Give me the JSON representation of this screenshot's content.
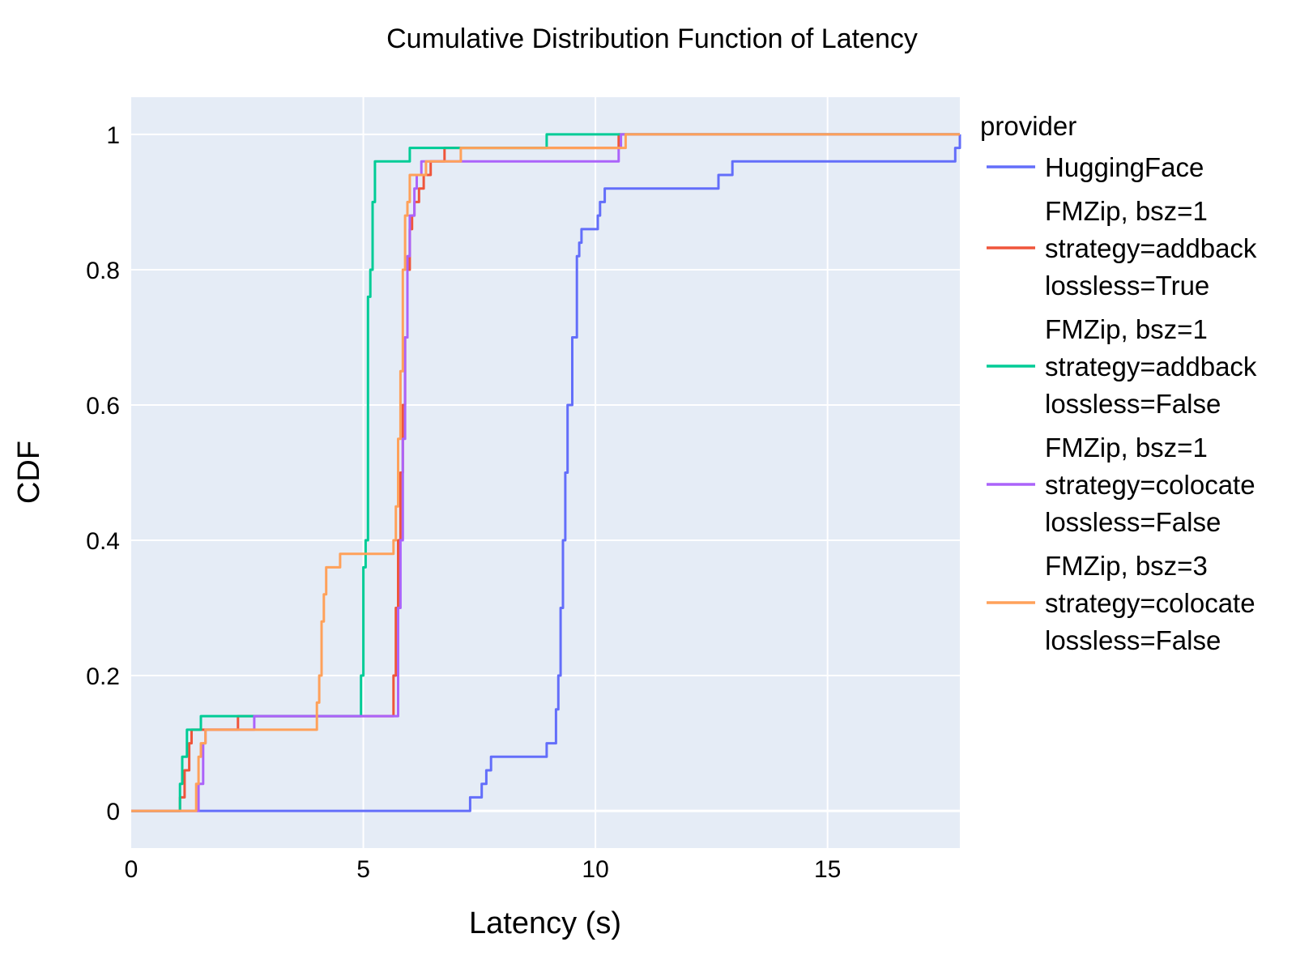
{
  "chart_data": {
    "type": "line",
    "title": "Cumulative Distribution Function of Latency",
    "xlabel": "Latency (s)",
    "ylabel": "CDF",
    "xlim": [
      0,
      17.85
    ],
    "ylim": [
      -0.055,
      1.055
    ],
    "xticks": [
      0,
      5,
      10,
      15
    ],
    "xtick_labels": [
      "0",
      "5",
      "10",
      "15"
    ],
    "yticks": [
      0,
      0.2,
      0.4,
      0.6,
      0.8,
      1
    ],
    "ytick_labels": [
      "0",
      "0.2",
      "0.4",
      "0.6",
      "0.8",
      "1"
    ],
    "grid": true,
    "legend_title": "provider",
    "legend_position": "right",
    "series": [
      {
        "name": "HuggingFace",
        "color": "#636efa",
        "x": [
          0,
          7.25,
          7.3,
          7.55,
          7.65,
          7.75,
          7.8,
          8.95,
          9.0,
          9.15,
          9.2,
          9.25,
          9.3,
          9.35,
          9.4,
          9.5,
          9.6,
          9.65,
          9.7,
          9.75,
          9.8,
          10.05,
          10.1,
          10.2,
          10.25,
          12.65,
          12.75,
          12.95,
          13.0,
          17.75,
          17.85
        ],
        "y": [
          0,
          0,
          0.02,
          0.04,
          0.06,
          0.08,
          0.08,
          0.1,
          0.1,
          0.15,
          0.2,
          0.3,
          0.4,
          0.5,
          0.6,
          0.7,
          0.82,
          0.84,
          0.86,
          0.86,
          0.86,
          0.88,
          0.9,
          0.92,
          0.92,
          0.94,
          0.94,
          0.96,
          0.96,
          0.98,
          1.0
        ]
      },
      {
        "name": "FMZip, bsz=1 strategy=addback lossless=True",
        "color": "#ef553b",
        "x": [
          0,
          1.0,
          1.05,
          1.15,
          1.25,
          1.3,
          2.25,
          2.3,
          5.6,
          5.65,
          5.7,
          5.75,
          5.8,
          5.85,
          5.9,
          5.95,
          6.0,
          6.05,
          6.1,
          6.2,
          6.3,
          6.45,
          6.6,
          6.75,
          10.45,
          10.5,
          17.85
        ],
        "y": [
          0,
          0,
          0.02,
          0.06,
          0.1,
          0.12,
          0.12,
          0.14,
          0.14,
          0.2,
          0.3,
          0.4,
          0.5,
          0.6,
          0.7,
          0.8,
          0.86,
          0.88,
          0.9,
          0.92,
          0.94,
          0.96,
          0.96,
          0.98,
          0.98,
          1.0,
          1.0
        ]
      },
      {
        "name": "FMZip, bsz=1 strategy=addback lossless=False",
        "color": "#00cc96",
        "x": [
          0,
          1.0,
          1.05,
          1.1,
          1.2,
          1.5,
          4.9,
          4.95,
          5.0,
          5.05,
          5.1,
          5.15,
          5.2,
          5.25,
          5.3,
          5.95,
          6.0,
          8.9,
          8.95,
          17.85
        ],
        "y": [
          0,
          0,
          0.04,
          0.08,
          0.12,
          0.14,
          0.14,
          0.2,
          0.36,
          0.4,
          0.76,
          0.8,
          0.9,
          0.96,
          0.96,
          0.96,
          0.98,
          0.98,
          1.0,
          1.0
        ]
      },
      {
        "name": "FMZip, bsz=1 strategy=colocate lossless=False",
        "color": "#ab63fa",
        "x": [
          0,
          1.4,
          1.45,
          1.55,
          1.6,
          2.6,
          2.65,
          5.7,
          5.75,
          5.8,
          5.85,
          5.9,
          5.95,
          6.0,
          6.1,
          6.15,
          6.25,
          6.3,
          10.5,
          10.55,
          17.85
        ],
        "y": [
          0,
          0,
          0.04,
          0.1,
          0.12,
          0.12,
          0.14,
          0.14,
          0.3,
          0.4,
          0.55,
          0.7,
          0.82,
          0.88,
          0.92,
          0.94,
          0.96,
          0.96,
          0.98,
          1.0,
          1.0
        ]
      },
      {
        "name": "FMZip, bsz=3 strategy=colocate lossless=False",
        "color": "#ffa15a",
        "x": [
          0,
          1.35,
          1.4,
          1.45,
          1.5,
          1.6,
          3.95,
          4.0,
          4.05,
          4.1,
          4.15,
          4.2,
          4.25,
          4.4,
          4.5,
          5.6,
          5.65,
          5.7,
          5.75,
          5.8,
          5.85,
          5.9,
          5.95,
          6.0,
          6.25,
          6.35,
          7.05,
          7.1,
          10.6,
          10.65,
          17.85
        ],
        "y": [
          0,
          0,
          0.04,
          0.08,
          0.1,
          0.12,
          0.12,
          0.16,
          0.2,
          0.28,
          0.32,
          0.36,
          0.36,
          0.36,
          0.38,
          0.38,
          0.4,
          0.45,
          0.55,
          0.65,
          0.8,
          0.88,
          0.9,
          0.94,
          0.94,
          0.96,
          0.96,
          0.98,
          0.98,
          1.0,
          1.0
        ]
      }
    ],
    "legend_labels": [
      [
        "HuggingFace"
      ],
      [
        "FMZip, bsz=1",
        "strategy=addback",
        "lossless=True"
      ],
      [
        "FMZip, bsz=1",
        "strategy=addback",
        "lossless=False"
      ],
      [
        "FMZip, bsz=1",
        "strategy=colocate",
        "lossless=False"
      ],
      [
        "FMZip, bsz=3",
        "strategy=colocate",
        "lossless=False"
      ]
    ],
    "colors": {
      "plot_bg": "#e5ecf6",
      "grid": "#ffffff",
      "paper_bg": "#ffffff"
    }
  }
}
